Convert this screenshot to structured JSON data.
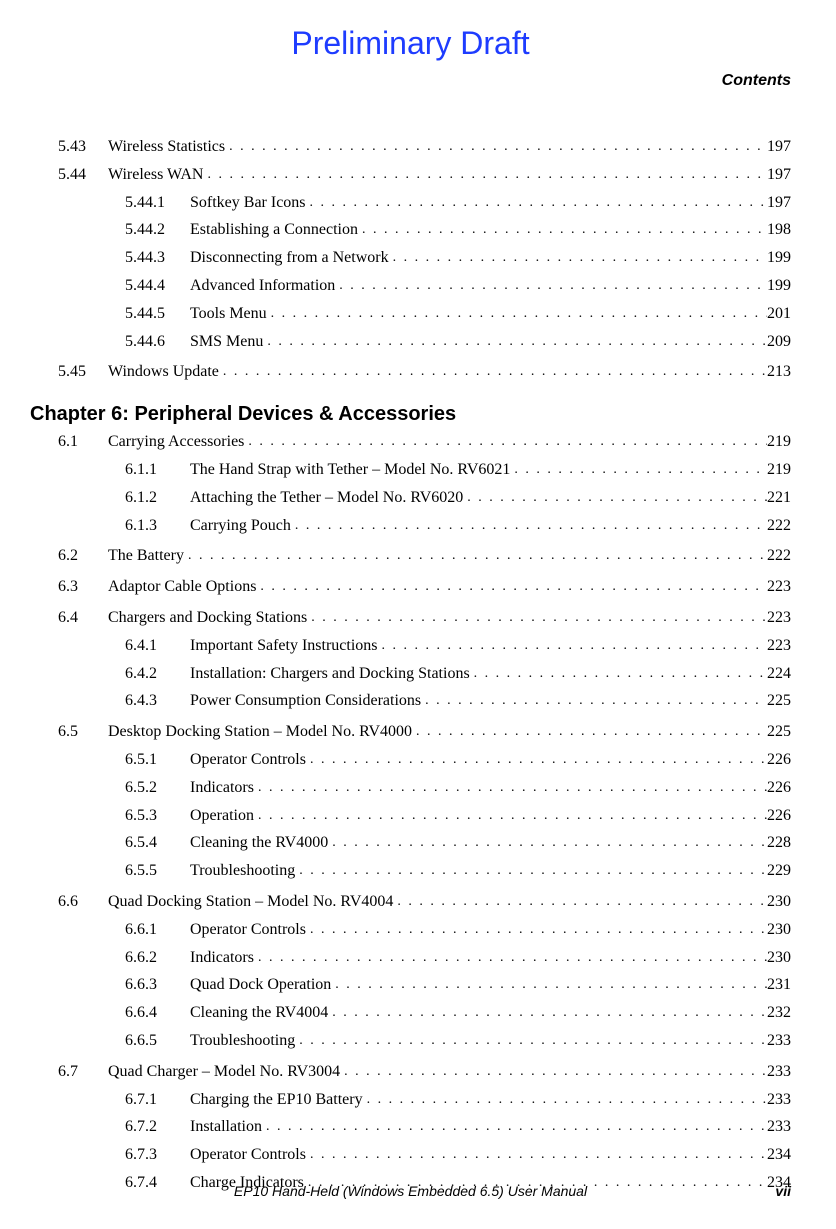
{
  "watermark": "Preliminary Draft",
  "header": "Contents",
  "chapter": "Chapter 6:  Peripheral Devices & Accessories",
  "toc": [
    {
      "lvl": 1,
      "num": "5.43",
      "title": "Wireless Statistics",
      "pg": "197"
    },
    {
      "lvl": 1,
      "num": "5.44",
      "title": "Wireless WAN",
      "pg": "197"
    },
    {
      "lvl": 2,
      "num": "5.44.1",
      "title": "Softkey Bar Icons",
      "pg": "197"
    },
    {
      "lvl": 2,
      "num": "5.44.2",
      "title": "Establishing a Connection",
      "pg": "198"
    },
    {
      "lvl": 2,
      "num": "5.44.3",
      "title": "Disconnecting from a Network",
      "pg": "199"
    },
    {
      "lvl": 2,
      "num": "5.44.4",
      "title": "Advanced Information",
      "pg": "199"
    },
    {
      "lvl": 2,
      "num": "5.44.5",
      "title": "Tools Menu",
      "pg": "201"
    },
    {
      "lvl": 2,
      "num": "5.44.6",
      "title": "SMS Menu",
      "pg": "209"
    },
    {
      "lvl": 1,
      "num": "5.45",
      "title": "Windows Update",
      "pg": "213",
      "gap": true
    },
    {
      "lvl": 0,
      "chapter": true
    },
    {
      "lvl": 1,
      "num": "6.1",
      "title": "Carrying Accessories",
      "pg": "219"
    },
    {
      "lvl": 2,
      "num": "6.1.1",
      "title": "The Hand Strap with Tether – Model No. RV6021",
      "pg": "219"
    },
    {
      "lvl": 2,
      "num": "6.1.2",
      "title": "Attaching the Tether – Model No. RV6020",
      "pg": "221"
    },
    {
      "lvl": 2,
      "num": "6.1.3",
      "title": "Carrying Pouch",
      "pg": "222"
    },
    {
      "lvl": 1,
      "num": "6.2",
      "title": "The Battery",
      "pg": "222",
      "gap": true
    },
    {
      "lvl": 1,
      "num": "6.3",
      "title": "Adaptor Cable Options",
      "pg": "223",
      "gap": true
    },
    {
      "lvl": 1,
      "num": "6.4",
      "title": "Chargers and Docking Stations",
      "pg": "223",
      "gap": true
    },
    {
      "lvl": 2,
      "num": "6.4.1",
      "title": "Important Safety Instructions",
      "pg": "223"
    },
    {
      "lvl": 2,
      "num": "6.4.2",
      "title": "Installation: Chargers and Docking Stations",
      "pg": "224"
    },
    {
      "lvl": 2,
      "num": "6.4.3",
      "title": "Power Consumption Considerations",
      "pg": "225"
    },
    {
      "lvl": 1,
      "num": "6.5",
      "title": "Desktop Docking Station – Model No. RV4000",
      "pg": "225",
      "gap": true
    },
    {
      "lvl": 2,
      "num": "6.5.1",
      "title": "Operator Controls",
      "pg": "226"
    },
    {
      "lvl": 2,
      "num": "6.5.2",
      "title": "Indicators",
      "pg": "226"
    },
    {
      "lvl": 2,
      "num": "6.5.3",
      "title": "Operation",
      "pg": "226"
    },
    {
      "lvl": 2,
      "num": "6.5.4",
      "title": "Cleaning the RV4000",
      "pg": "228"
    },
    {
      "lvl": 2,
      "num": "6.5.5",
      "title": "Troubleshooting",
      "pg": "229"
    },
    {
      "lvl": 1,
      "num": "6.6",
      "title": "Quad Docking Station – Model No. RV4004",
      "pg": "230",
      "gap": true
    },
    {
      "lvl": 2,
      "num": "6.6.1",
      "title": "Operator Controls",
      "pg": "230"
    },
    {
      "lvl": 2,
      "num": "6.6.2",
      "title": "Indicators",
      "pg": "230"
    },
    {
      "lvl": 2,
      "num": "6.6.3",
      "title": "Quad Dock Operation",
      "pg": "231"
    },
    {
      "lvl": 2,
      "num": "6.6.4",
      "title": "Cleaning the RV4004",
      "pg": "232"
    },
    {
      "lvl": 2,
      "num": "6.6.5",
      "title": "Troubleshooting",
      "pg": "233"
    },
    {
      "lvl": 1,
      "num": "6.7",
      "title": "Quad Charger – Model No. RV3004",
      "pg": "233",
      "gap": true
    },
    {
      "lvl": 2,
      "num": "6.7.1",
      "title": "Charging the EP10 Battery",
      "pg": "233"
    },
    {
      "lvl": 2,
      "num": "6.7.2",
      "title": "Installation",
      "pg": "233"
    },
    {
      "lvl": 2,
      "num": "6.7.3",
      "title": "Operator Controls",
      "pg": "234"
    },
    {
      "lvl": 2,
      "num": "6.7.4",
      "title": "Charge Indicators",
      "pg": "234"
    }
  ],
  "footer": {
    "center": "EP10 Hand-Held (Windows Embedded 6.5) User Manual",
    "right": "vii"
  }
}
